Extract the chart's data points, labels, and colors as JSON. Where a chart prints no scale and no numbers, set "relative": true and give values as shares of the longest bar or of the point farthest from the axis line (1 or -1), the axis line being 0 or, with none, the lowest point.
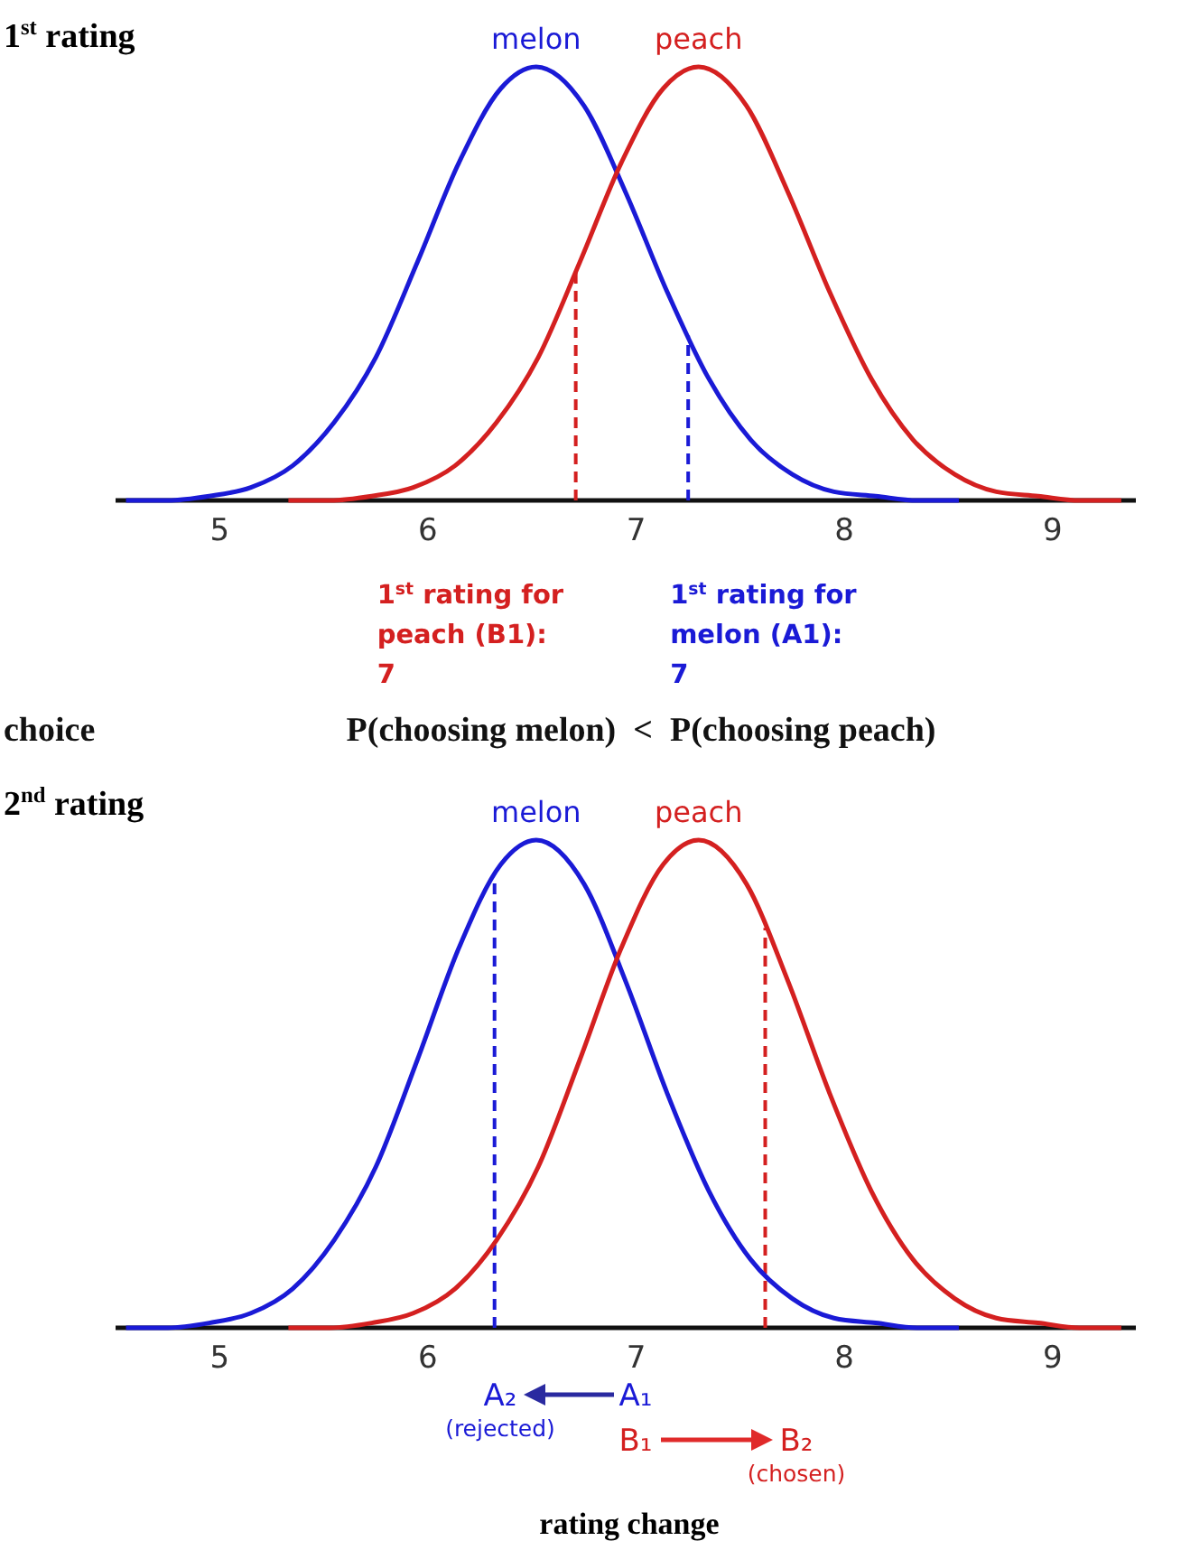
{
  "chart_data": [
    {
      "type": "line",
      "title": "1$^{st}$ rating",
      "relative": true,
      "xlim": [
        4.5,
        9.4
      ],
      "xticks": [
        5,
        6,
        7,
        8,
        9
      ],
      "series": [
        {
          "name": "melon",
          "color": "#1a1ad6",
          "x": [
            4.55,
            4.75,
            4.95,
            5.15,
            5.35,
            5.55,
            5.75,
            5.95,
            6.15,
            6.35,
            6.52,
            6.75,
            6.95,
            7.15,
            7.35,
            7.55,
            7.75,
            7.95,
            8.15,
            8.35,
            8.55
          ],
          "values": [
            0,
            0,
            0.01,
            0.03,
            0.08,
            0.18,
            0.33,
            0.55,
            0.78,
            0.95,
            1,
            0.91,
            0.71,
            0.48,
            0.28,
            0.14,
            0.06,
            0.02,
            0.01,
            0,
            0
          ]
        },
        {
          "name": "peach",
          "color": "#d42020",
          "x": [
            5.33,
            5.53,
            5.73,
            5.93,
            6.13,
            6.33,
            6.53,
            6.73,
            6.93,
            7.13,
            7.3,
            7.53,
            7.73,
            7.93,
            8.13,
            8.33,
            8.53,
            8.73,
            8.93,
            9.13,
            9.33
          ],
          "values": [
            0,
            0,
            0.01,
            0.03,
            0.08,
            0.18,
            0.33,
            0.55,
            0.78,
            0.95,
            1,
            0.91,
            0.71,
            0.48,
            0.28,
            0.14,
            0.06,
            0.02,
            0.01,
            0,
            0
          ]
        }
      ],
      "ref_lines": [
        {
          "axis": "x",
          "value": 6.71,
          "label": "1$^{st}$ rating for peach (B1): 7",
          "color": "#d42020",
          "line_style": "dashed"
        },
        {
          "axis": "x",
          "value": 7.25,
          "label": "1$^{st}$ rating for melon (A1): 7",
          "color": "#1a1ad6",
          "line_style": "dashed"
        }
      ],
      "annotations": [
        "choice",
        "P(choosing melon)  <  P(choosing peach)"
      ]
    },
    {
      "type": "line",
      "title": "2$^{nd}$ rating",
      "relative": true,
      "xlim": [
        4.5,
        9.4
      ],
      "xticks": [
        5,
        6,
        7,
        8,
        9
      ],
      "xlabel": "rating change",
      "series": [
        {
          "name": "melon",
          "color": "#1a1ad6",
          "x": [
            4.55,
            4.75,
            4.95,
            5.15,
            5.35,
            5.55,
            5.75,
            5.95,
            6.15,
            6.35,
            6.52,
            6.75,
            6.95,
            7.15,
            7.35,
            7.55,
            7.75,
            7.95,
            8.15,
            8.35,
            8.55
          ],
          "values": [
            0,
            0,
            0.01,
            0.03,
            0.08,
            0.18,
            0.33,
            0.55,
            0.78,
            0.95,
            1,
            0.91,
            0.71,
            0.48,
            0.28,
            0.14,
            0.06,
            0.02,
            0.01,
            0,
            0
          ]
        },
        {
          "name": "peach",
          "color": "#d42020",
          "x": [
            5.33,
            5.53,
            5.73,
            5.93,
            6.13,
            6.33,
            6.53,
            6.73,
            6.93,
            7.13,
            7.3,
            7.53,
            7.73,
            7.93,
            8.13,
            8.33,
            8.53,
            8.73,
            8.93,
            9.13,
            9.33
          ],
          "values": [
            0,
            0,
            0.01,
            0.03,
            0.08,
            0.18,
            0.33,
            0.55,
            0.78,
            0.95,
            1,
            0.91,
            0.71,
            0.48,
            0.28,
            0.14,
            0.06,
            0.02,
            0.01,
            0,
            0
          ]
        }
      ],
      "ref_lines": [
        {
          "axis": "x",
          "value": 6.32,
          "color": "#1a1ad6",
          "line_style": "dashed"
        },
        {
          "axis": "x",
          "value": 7.62,
          "color": "#d42020",
          "line_style": "dashed"
        }
      ],
      "annotations": [
        "A₂",
        "(rejected)",
        "A₁",
        "B₁",
        "B₂",
        "(chosen)"
      ]
    }
  ]
}
